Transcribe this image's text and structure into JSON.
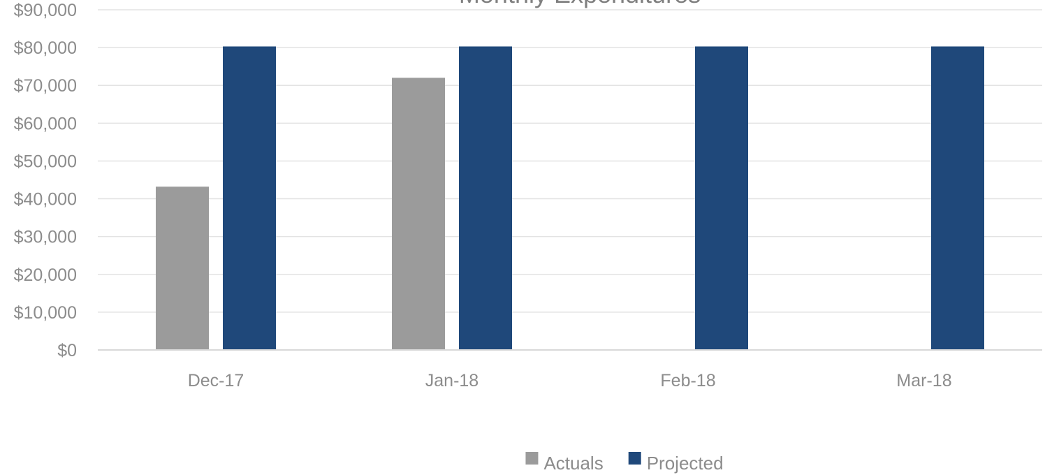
{
  "chart_data": {
    "type": "bar",
    "title": "Monthly Expenditures",
    "categories": [
      "Dec-17",
      "Jan-18",
      "Feb-18",
      "Mar-18"
    ],
    "series": [
      {
        "name": "Actuals",
        "color": "#9b9b9b",
        "values": [
          43200,
          72000,
          null,
          null
        ]
      },
      {
        "name": "Projected",
        "color": "#1f487a",
        "values": [
          80300,
          80300,
          80300,
          80300
        ]
      }
    ],
    "ylim": [
      0,
      90000
    ],
    "yticks": [
      0,
      10000,
      20000,
      30000,
      40000,
      50000,
      60000,
      70000,
      80000,
      90000
    ],
    "ytick_labels": [
      "$0",
      "$10,000",
      "$20,000",
      "$30,000",
      "$40,000",
      "$50,000",
      "$60,000",
      "$70,000",
      "$80,000",
      "$90,000"
    ],
    "grid": true,
    "legend_position": "bottom"
  }
}
